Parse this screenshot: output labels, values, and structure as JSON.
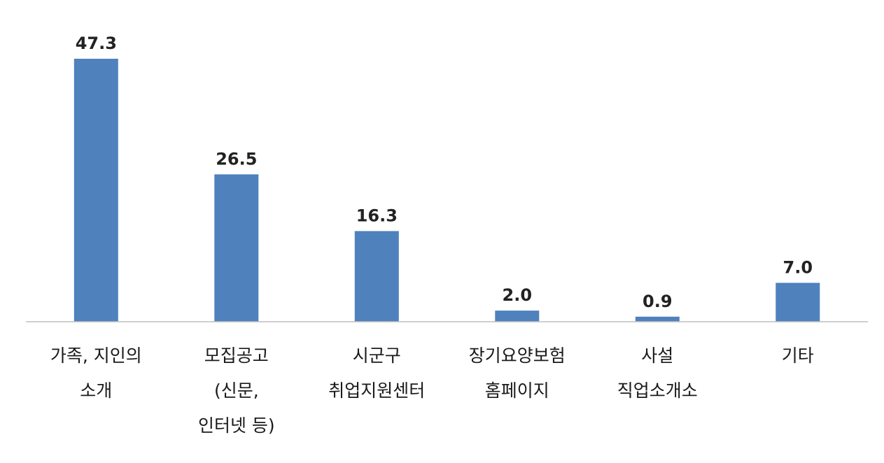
{
  "chart_data": {
    "type": "bar",
    "categories": [
      [
        "가족, 지인의",
        "소개"
      ],
      [
        "모집공고",
        "(신문,",
        "인터넷 등)"
      ],
      [
        "시군구",
        "취업지원센터"
      ],
      [
        "장기요양보험",
        "홈페이지"
      ],
      [
        "사설",
        "직업소개소"
      ],
      [
        "기타"
      ]
    ],
    "values": [
      47.3,
      26.5,
      16.3,
      2.0,
      0.9,
      7.0
    ],
    "value_labels": [
      "47.3",
      "26.5",
      "16.3",
      "2.0",
      "0.9",
      "7.0"
    ],
    "bar_color": "#4F81BD",
    "axis_color": "#BFBFBF",
    "title": "",
    "xlabel": "",
    "ylabel": "",
    "grid": false,
    "legend": "none"
  }
}
